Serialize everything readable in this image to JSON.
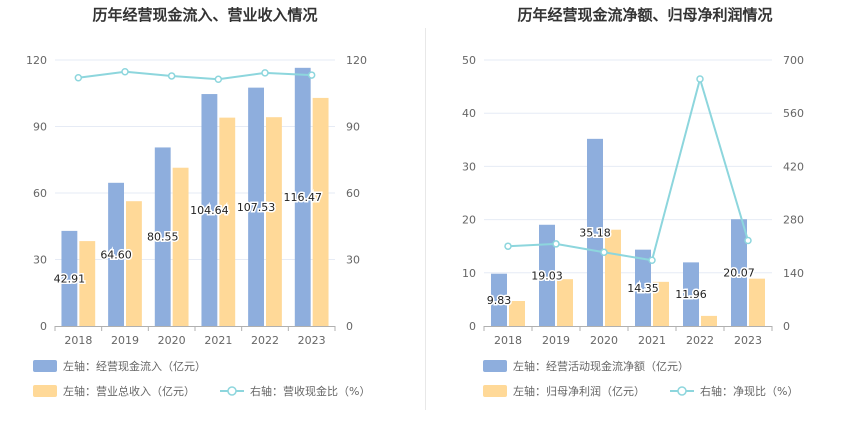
{
  "colors": {
    "bar_primary": "#8eaedd",
    "bar_secondary": "#ffd998",
    "line": "#8dd6dd",
    "grid": "#e6ebf5",
    "axis": "#b0b0b0",
    "divider": "#e8e8e8"
  },
  "chart_data": [
    {
      "type": "bar",
      "title": "历年经营现金流入、营业收入情况",
      "categories": [
        "2018",
        "2019",
        "2020",
        "2021",
        "2022",
        "2023"
      ],
      "y_left": {
        "ticks": [
          "0",
          "30",
          "60",
          "90",
          "120"
        ],
        "ylim": [
          0,
          120
        ]
      },
      "y_right": {
        "ticks": [
          "0",
          "30",
          "60",
          "90",
          "120"
        ],
        "ylim": [
          0,
          120
        ]
      },
      "series": [
        {
          "name": "左轴：经营现金流入（亿元）",
          "kind": "bar",
          "axis": "left",
          "values": [
            42.91,
            64.6,
            80.55,
            104.64,
            107.53,
            116.47
          ],
          "labels": [
            "42.91",
            "64.60",
            "80.55",
            "104.64",
            "107.53",
            "116.47"
          ]
        },
        {
          "name": "左轴：营业总收入（亿元）",
          "kind": "bar",
          "axis": "left",
          "values": [
            38.3,
            56.3,
            71.4,
            94.0,
            94.2,
            102.9
          ]
        },
        {
          "name": "右轴：营收现金比（%）",
          "kind": "line",
          "axis": "right",
          "values": [
            112.0,
            114.7,
            112.8,
            111.3,
            114.2,
            113.2
          ]
        }
      ],
      "legend_position": "bottom",
      "grid": true
    },
    {
      "type": "bar",
      "title": "历年经营现金流净额、归母净利润情况",
      "categories": [
        "2018",
        "2019",
        "2020",
        "2021",
        "2022",
        "2023"
      ],
      "y_left": {
        "ticks": [
          "0",
          "10",
          "20",
          "30",
          "40",
          "50"
        ],
        "ylim": [
          0,
          50
        ]
      },
      "y_right": {
        "ticks": [
          "0",
          "140",
          "280",
          "420",
          "560",
          "700"
        ],
        "ylim": [
          0,
          700
        ]
      },
      "series": [
        {
          "name": "左轴：经营活动现金流净额（亿元）",
          "kind": "bar",
          "axis": "left",
          "values": [
            9.83,
            19.03,
            35.18,
            14.35,
            11.96,
            20.07
          ],
          "labels": [
            "9.83",
            "19.03",
            "35.18",
            "14.35",
            "11.96",
            "20.07"
          ]
        },
        {
          "name": "左轴：归母净利润（亿元）",
          "kind": "bar",
          "axis": "left",
          "values": [
            4.7,
            8.8,
            18.1,
            8.3,
            1.9,
            8.9
          ]
        },
        {
          "name": "右轴：净现比（%）",
          "kind": "line",
          "axis": "right",
          "values": [
            210,
            216,
            194,
            173,
            650,
            225
          ]
        }
      ],
      "legend_position": "bottom",
      "grid": true
    }
  ]
}
